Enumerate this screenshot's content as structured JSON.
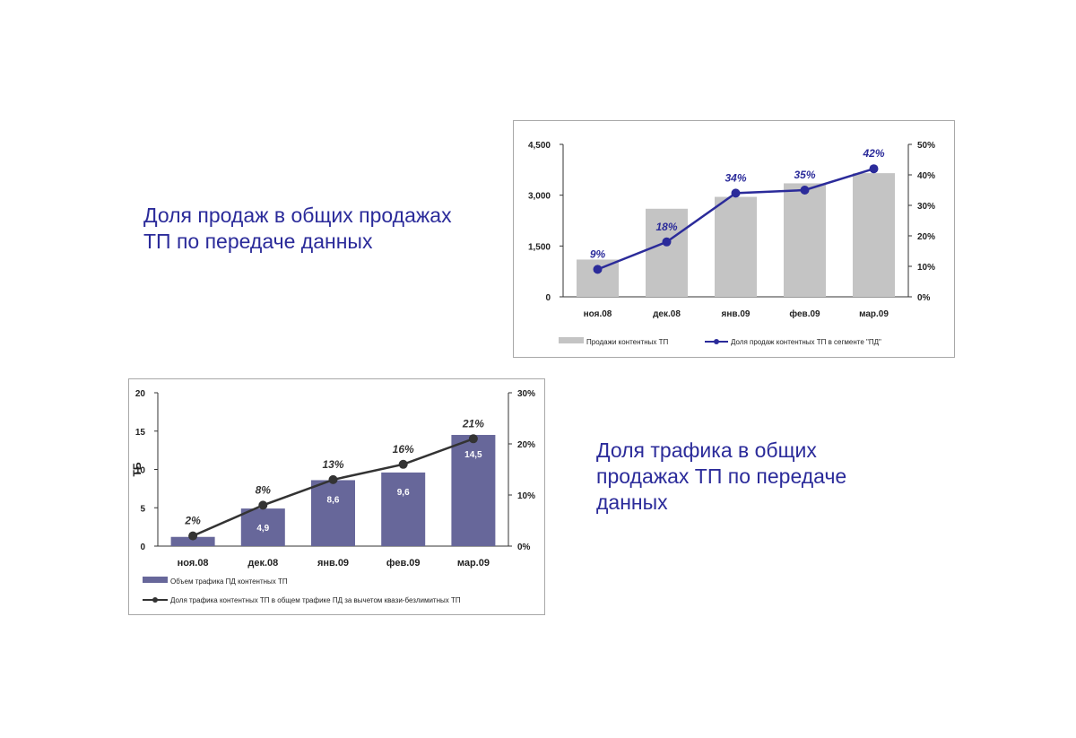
{
  "captions": {
    "top": "Доля продаж в общих продажах ТП по передаче данных",
    "bottom": "Доля трафика в общих продажах ТП по передаче данных"
  },
  "chart_data": [
    {
      "type": "bar",
      "combo": "bar-line",
      "categories": [
        "ноя.08",
        "дек.08",
        "янв.09",
        "фев.09",
        "мар.09"
      ],
      "series": [
        {
          "name": "Продажи контентных ТП",
          "type": "bar",
          "axis": "left",
          "color": "#c4c4c4",
          "values": [
            1100,
            2600,
            2950,
            3350,
            3650
          ]
        },
        {
          "name": "Доля продаж контентных ТП в сегменте \"ПД\"",
          "type": "line",
          "axis": "right",
          "color": "#2b2b9a",
          "values": [
            9,
            18,
            34,
            35,
            42
          ],
          "labels": [
            "9%",
            "18%",
            "34%",
            "35%",
            "42%"
          ]
        }
      ],
      "y_left": {
        "min": 0,
        "max": 4500,
        "ticks": [
          0,
          1500,
          3000,
          4500
        ],
        "tick_labels": [
          "0",
          "1,500",
          "3,000",
          "4,500"
        ]
      },
      "y_right": {
        "min": 0,
        "max": 50,
        "ticks": [
          0,
          10,
          20,
          30,
          40,
          50
        ],
        "tick_labels": [
          "0%",
          "10%",
          "20%",
          "30%",
          "40%",
          "50%"
        ]
      },
      "legend_position": "bottom",
      "grid": false
    },
    {
      "type": "bar",
      "combo": "bar-line",
      "categories": [
        "ноя.08",
        "дек.08",
        "янв.09",
        "фев.09",
        "мар.09"
      ],
      "ylabel": "ТБ",
      "series": [
        {
          "name": "Объем трафика ПД контентных ТП",
          "type": "bar",
          "axis": "left",
          "color": "#67679a",
          "values": [
            1.2,
            4.9,
            8.6,
            9.6,
            14.5
          ],
          "labels": [
            "",
            "4,9",
            "8,6",
            "9,6",
            "14,5"
          ]
        },
        {
          "name": "Доля трафика контентных ТП в общем трафике ПД за вычетом квази-безлимитных ТП",
          "type": "line",
          "axis": "right",
          "color": "#333333",
          "values": [
            2,
            8,
            13,
            16,
            21
          ],
          "labels": [
            "2%",
            "8%",
            "13%",
            "16%",
            "21%"
          ]
        }
      ],
      "y_left": {
        "min": 0,
        "max": 20,
        "ticks": [
          0,
          5,
          10,
          15,
          20
        ],
        "tick_labels": [
          "0",
          "5",
          "10",
          "15",
          "20"
        ]
      },
      "y_right": {
        "min": 0,
        "max": 30,
        "ticks": [
          0,
          10,
          20,
          30
        ],
        "tick_labels": [
          "0%",
          "10%",
          "20%",
          "30%"
        ]
      },
      "legend_position": "bottom",
      "grid": false
    }
  ]
}
